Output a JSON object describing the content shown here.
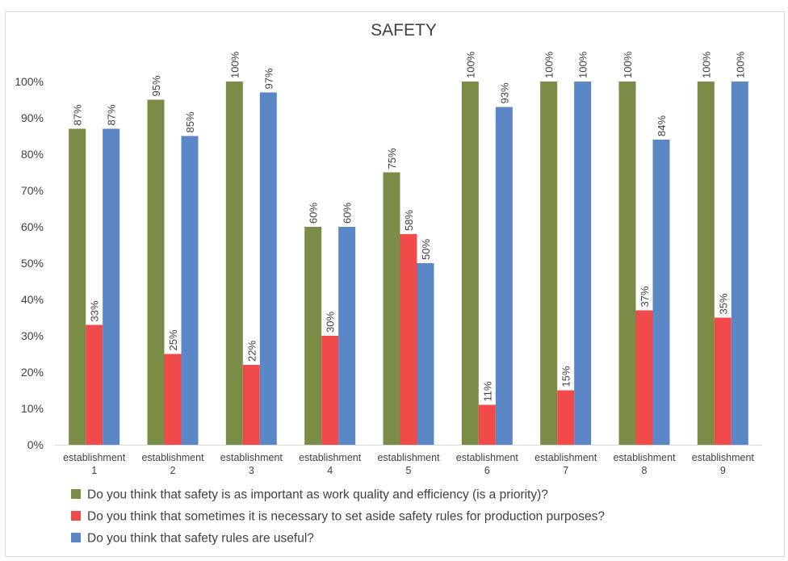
{
  "chart_data": {
    "type": "bar",
    "title": "SAFETY",
    "categories": [
      [
        "establishment",
        "1"
      ],
      [
        "establishment",
        "2"
      ],
      [
        "establishment",
        "3"
      ],
      [
        "establishment",
        "4"
      ],
      [
        "establishment",
        "5"
      ],
      [
        "establishment",
        "6"
      ],
      [
        "establishment",
        "7"
      ],
      [
        "establishment",
        "8"
      ],
      [
        "establishment",
        "9"
      ]
    ],
    "ylim": [
      0,
      100
    ],
    "yticks": [
      0,
      10,
      20,
      30,
      40,
      50,
      60,
      70,
      80,
      90,
      100
    ],
    "ytick_labels": [
      "0%",
      "10%",
      "20%",
      "30%",
      "40%",
      "50%",
      "60%",
      "70%",
      "80%",
      "90%",
      "100%"
    ],
    "grid": false,
    "legend_position": "bottom",
    "series": [
      {
        "name": "Do you think that safety is as important as work quality and efficiency (is a priority)?",
        "color": "#7a8c46",
        "values": [
          87,
          95,
          100,
          60,
          75,
          100,
          100,
          100,
          100
        ],
        "labels": [
          "87%",
          "95%",
          "100%",
          "60%",
          "75%",
          "100%",
          "100%",
          "100%",
          "100%"
        ]
      },
      {
        "name": "Do you think that sometimes it is necessary to set aside safety rules for production purposes?",
        "color": "#f04a4a",
        "values": [
          33,
          25,
          22,
          30,
          58,
          11,
          15,
          37,
          35
        ],
        "labels": [
          "33%",
          "25%",
          "22%",
          "30%",
          "58%",
          "11%",
          "15%",
          "37%",
          "35%"
        ]
      },
      {
        "name": "Do you think that safety rules are useful?",
        "color": "#5b87c7",
        "values": [
          87,
          85,
          97,
          60,
          50,
          93,
          100,
          84,
          100
        ],
        "labels": [
          "87%",
          "85%",
          "97%",
          "60%",
          "50%",
          "93%",
          "100%",
          "84%",
          "100%"
        ]
      }
    ]
  }
}
